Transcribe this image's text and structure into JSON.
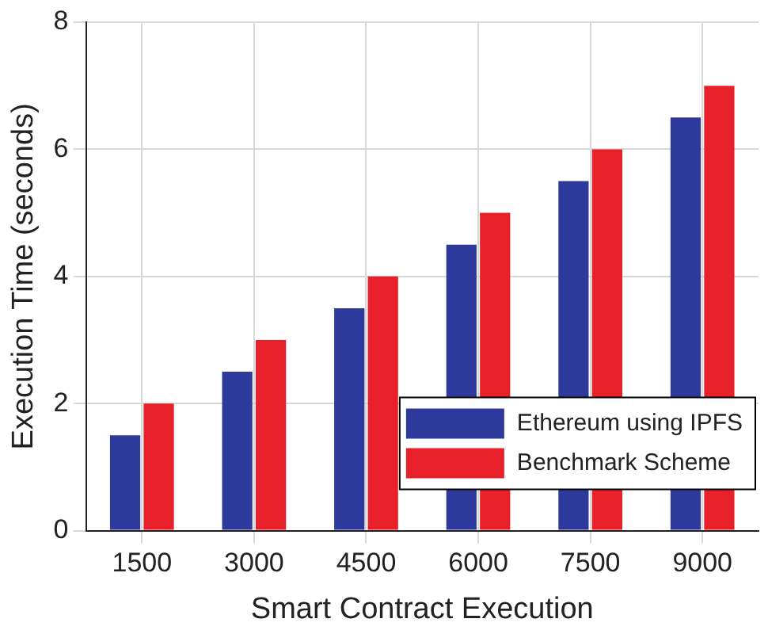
{
  "chart_data": {
    "type": "bar",
    "xlabel": "Smart Contract Execution",
    "ylabel": "Execution Time (seconds)",
    "categories": [
      "1500",
      "3000",
      "4500",
      "6000",
      "7500",
      "9000"
    ],
    "series": [
      {
        "name": "Ethereum using IPFS",
        "color": "#2e3a9b",
        "values": [
          1.5,
          2.5,
          3.5,
          4.5,
          5.5,
          6.5
        ]
      },
      {
        "name": "Benchmark Scheme",
        "color": "#e8202a",
        "values": [
          2,
          3,
          4,
          5,
          6,
          7
        ]
      }
    ],
    "ylim": [
      0,
      8
    ],
    "yticks": [
      0,
      2,
      4,
      6,
      8
    ],
    "grid": true,
    "legend": "bottom right"
  }
}
